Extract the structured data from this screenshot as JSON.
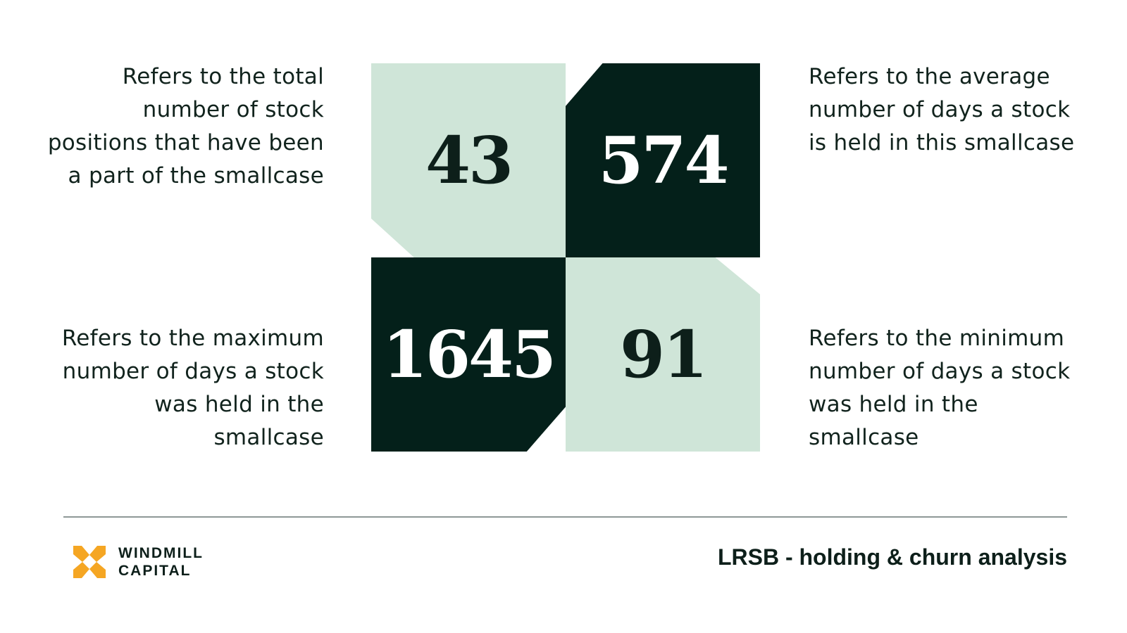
{
  "colors": {
    "light_tile": "#cfe5d8",
    "dark_tile": "#04201a",
    "dark_text": "#0d1f1a",
    "light_text": "#ffffff",
    "logo_orange": "#f5a623"
  },
  "stats": {
    "total_positions": {
      "value": "43",
      "description": "Refers to the total number of stock positions that have been a part of the smallcase"
    },
    "average_days": {
      "value": "574",
      "description": "Refers to the average number of days a stock is held in this smallcase"
    },
    "maximum_days": {
      "value": "1645",
      "description": "Refers to the maximum number of days a stock was held in the smallcase"
    },
    "minimum_days": {
      "value": "91",
      "description": "Refers to the minimum number of days a stock was held in the smallcase"
    }
  },
  "footer": {
    "logo_line1": "WINDMILL",
    "logo_line2": "CAPITAL",
    "logo_icon": "windmill-logo-icon",
    "report_title": "LRSB - holding & churn analysis"
  }
}
